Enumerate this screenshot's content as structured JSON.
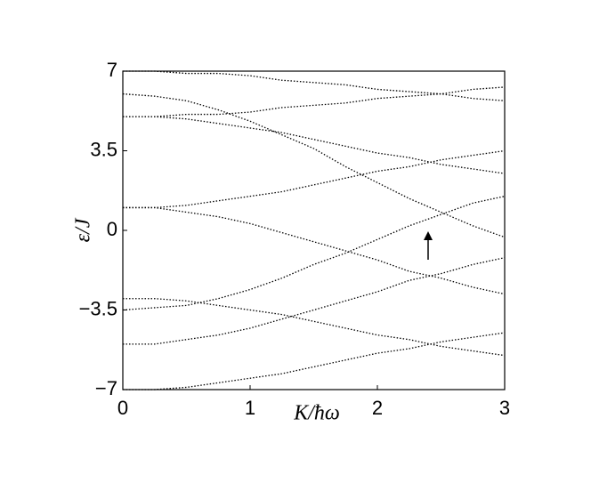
{
  "chart_data": {
    "type": "line",
    "xlabel": "K/ħω",
    "ylabel": "ε/J",
    "x": [
      0,
      0.25,
      0.5,
      0.75,
      1,
      1.25,
      1.5,
      1.75,
      2,
      2.25,
      2.5,
      2.75,
      3
    ],
    "xlim": [
      0,
      3
    ],
    "xticks": [
      0,
      1,
      2,
      3
    ],
    "ylim": [
      -7,
      7
    ],
    "yticks": [
      {
        "value": -7,
        "label": "−7"
      },
      {
        "value": -3.5,
        "label": "−3.5"
      },
      0,
      3.5,
      7
    ],
    "color": "#000000",
    "series": [
      {
        "values": [
          7,
          7,
          6.9,
          6.9,
          6.8,
          6.6,
          6.5,
          6.4,
          6.2,
          6.1,
          6,
          5.8,
          5.7
        ]
      },
      {
        "values": [
          5,
          5,
          5.1,
          5.1,
          5.2,
          5.4,
          5.5,
          5.6,
          5.8,
          5.9,
          6,
          6.2,
          6.3
        ]
      },
      {
        "values": [
          5,
          5,
          4.9,
          4.7,
          4.5,
          4.3,
          4,
          3.7,
          3.4,
          3.2,
          2.9,
          2.7,
          2.5
        ]
      },
      {
        "values": [
          1,
          1,
          1.1,
          1.3,
          1.5,
          1.7,
          2,
          2.3,
          2.6,
          2.8,
          3.1,
          3.3,
          3.5
        ]
      },
      {
        "values": [
          1,
          1,
          0.8,
          0.6,
          0.3,
          -0.1,
          -0.5,
          -0.9,
          -1.3,
          -1.8,
          -2.1,
          -2.5,
          -2.8
        ]
      },
      {
        "values": [
          -5,
          -5,
          -4.8,
          -4.6,
          -4.3,
          -3.9,
          -3.5,
          -3.1,
          -2.7,
          -2.2,
          -1.9,
          -1.5,
          -1.2
        ]
      },
      {
        "values": [
          -3,
          -3,
          -3.1,
          -3.3,
          -3.5,
          -3.7,
          -4,
          -4.3,
          -4.6,
          -4.8,
          -5.1,
          -5.3,
          -5.5
        ]
      },
      {
        "values": [
          -7,
          -7,
          -6.9,
          -6.7,
          -6.5,
          -6.3,
          -6,
          -5.7,
          -5.4,
          -5.2,
          -4.9,
          -4.7,
          -4.5
        ]
      },
      {
        "values": [
          -3.5,
          -3.4,
          -3.3,
          -3,
          -2.6,
          -2.1,
          -1.5,
          -1,
          -0.4,
          0.2,
          0.7,
          1.2,
          1.5
        ]
      },
      {
        "values": [
          6,
          5.9,
          5.7,
          5.3,
          4.8,
          4.2,
          3.6,
          2.8,
          2.1,
          1.4,
          0.8,
          0.2,
          -0.3
        ]
      }
    ]
  }
}
